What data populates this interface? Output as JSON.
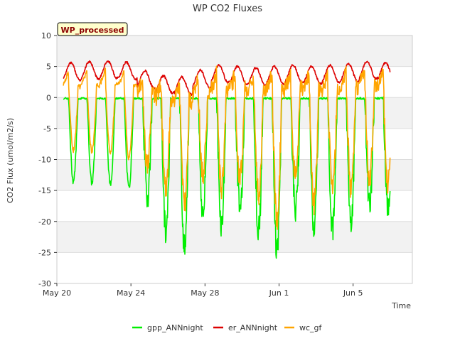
{
  "chart_data": {
    "type": "line",
    "title": "WP CO2 Fluxes",
    "xlabel": "Time",
    "ylabel": "CO2 Flux (umol/m2/s)",
    "badge": "WP_processed",
    "ylim": [
      -30,
      10
    ],
    "yticks": [
      10,
      5,
      0,
      -5,
      -10,
      -15,
      -20,
      -25,
      -30
    ],
    "xlim_days": [
      0,
      19.2
    ],
    "xticks": [
      {
        "day": 0,
        "label": "May 20"
      },
      {
        "day": 4,
        "label": "May 24"
      },
      {
        "day": 8,
        "label": "May 28"
      },
      {
        "day": 12,
        "label": "Jun 1"
      },
      {
        "day": 16,
        "label": "Jun 5"
      }
    ],
    "grid": true,
    "legend_position": "bottom",
    "series": [
      {
        "name": "gpp_ANNnight",
        "color": "#00ee00",
        "daily_min": [
          -13.5,
          -13.8,
          -14.0,
          -14.6,
          -16.0,
          -22.0,
          -24.0,
          -19.0,
          -20.5,
          -18.0,
          -21.5,
          -25.0,
          -18.0,
          -21.0,
          -21.0,
          -20.0,
          -17.0,
          -17.5
        ]
      },
      {
        "name": "er_ANNnight",
        "color": "#dd0000",
        "daily_max": [
          5.6,
          5.8,
          5.9,
          5.7,
          4.3,
          3.5,
          3.3,
          4.4,
          5.2,
          5.0,
          4.8,
          5.0,
          5.2,
          5.0,
          5.2,
          5.4,
          5.8,
          5.6
        ]
      },
      {
        "name": "wc_gf",
        "color": "#ffa500",
        "daily_min": [
          -8.5,
          -8.8,
          -9.0,
          -9.8,
          -11.0,
          -15.0,
          -17.0,
          -12.5,
          -14.5,
          -13.0,
          -15.5,
          -20.0,
          -13.0,
          -17.0,
          -15.0,
          -15.0,
          -13.0,
          -14.0
        ]
      }
    ]
  }
}
